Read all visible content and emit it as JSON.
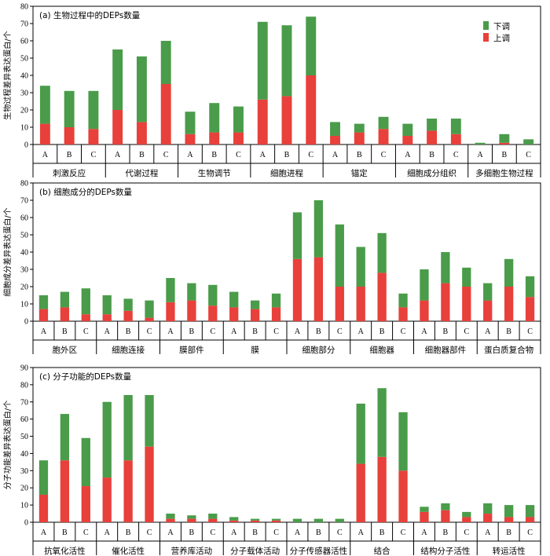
{
  "colors": {
    "down": "#4a9c4a",
    "up": "#e8403a"
  },
  "legend": {
    "down_label": "下调",
    "up_label": "上调"
  },
  "chart_data": [
    {
      "type": "bar",
      "stacked": true,
      "title": "(a) 生物过程中的DEPs数量",
      "ylabel": "生物过程差异表达蛋白/个",
      "ylim": [
        0,
        80
      ],
      "yticks": [
        0,
        10,
        20,
        30,
        40,
        50,
        60,
        70,
        80
      ],
      "groups": [
        "刺激反应",
        "代谢过程",
        "生物调节",
        "细胞进程",
        "锚定",
        "细胞成分组织",
        "多细胞生物过程"
      ],
      "subcategories": [
        "A",
        "B",
        "C"
      ],
      "series": [
        {
          "name": "上调",
          "values": [
            12,
            10,
            9,
            20,
            13,
            35,
            6,
            7,
            7,
            26,
            28,
            40,
            5,
            7,
            9,
            5,
            8,
            6,
            0,
            1,
            0
          ]
        },
        {
          "name": "下调",
          "values": [
            22,
            21,
            22,
            35,
            38,
            25,
            13,
            17,
            15,
            45,
            41,
            34,
            8,
            5,
            7,
            7,
            7,
            9,
            1,
            5,
            3
          ]
        }
      ]
    },
    {
      "type": "bar",
      "stacked": true,
      "title": "(b) 细胞成分的DEPs数量",
      "ylabel": "细胞成分差异表达蛋白/个",
      "ylim": [
        0,
        80
      ],
      "yticks": [
        0,
        10,
        20,
        30,
        40,
        50,
        60,
        70,
        80
      ],
      "groups": [
        "胞外区",
        "细胞连接",
        "膜部件",
        "膜",
        "细胞部分",
        "细胞器",
        "细胞器部件",
        "蛋白质复合物"
      ],
      "subcategories": [
        "A",
        "B",
        "C"
      ],
      "series": [
        {
          "name": "上调",
          "values": [
            7,
            8,
            4,
            4,
            6,
            2,
            11,
            12,
            9,
            8,
            7,
            8,
            36,
            37,
            20,
            20,
            28,
            8,
            12,
            22,
            20,
            12,
            20,
            14
          ]
        },
        {
          "name": "下调",
          "values": [
            8,
            9,
            15,
            11,
            7,
            10,
            14,
            10,
            12,
            9,
            5,
            8,
            27,
            33,
            36,
            23,
            23,
            8,
            18,
            18,
            11,
            10,
            16,
            12
          ]
        }
      ]
    },
    {
      "type": "bar",
      "stacked": true,
      "title": "(c) 分子功能的DEPs数量",
      "ylabel": "分子功能差异表达蛋白/个",
      "ylim": [
        0,
        90
      ],
      "yticks": [
        0,
        10,
        20,
        30,
        40,
        50,
        60,
        70,
        80,
        90
      ],
      "groups": [
        "抗氧化活性",
        "催化活性",
        "营养库活动",
        "分子载体活动",
        "分子传感器活性",
        "结合",
        "结构分子活性",
        "转运活性"
      ],
      "subcategories": [
        "A",
        "B",
        "C"
      ],
      "series": [
        {
          "name": "上调",
          "values": [
            16,
            36,
            21,
            26,
            36,
            44,
            2,
            2,
            2,
            1,
            1,
            1,
            0,
            0,
            0,
            34,
            38,
            30,
            6,
            7,
            3,
            5,
            3,
            3
          ]
        },
        {
          "name": "下调",
          "values": [
            20,
            27,
            28,
            44,
            38,
            30,
            3,
            2,
            3,
            2,
            1,
            1,
            2,
            2,
            2,
            35,
            40,
            34,
            3,
            4,
            3,
            6,
            7,
            7
          ]
        }
      ]
    }
  ]
}
